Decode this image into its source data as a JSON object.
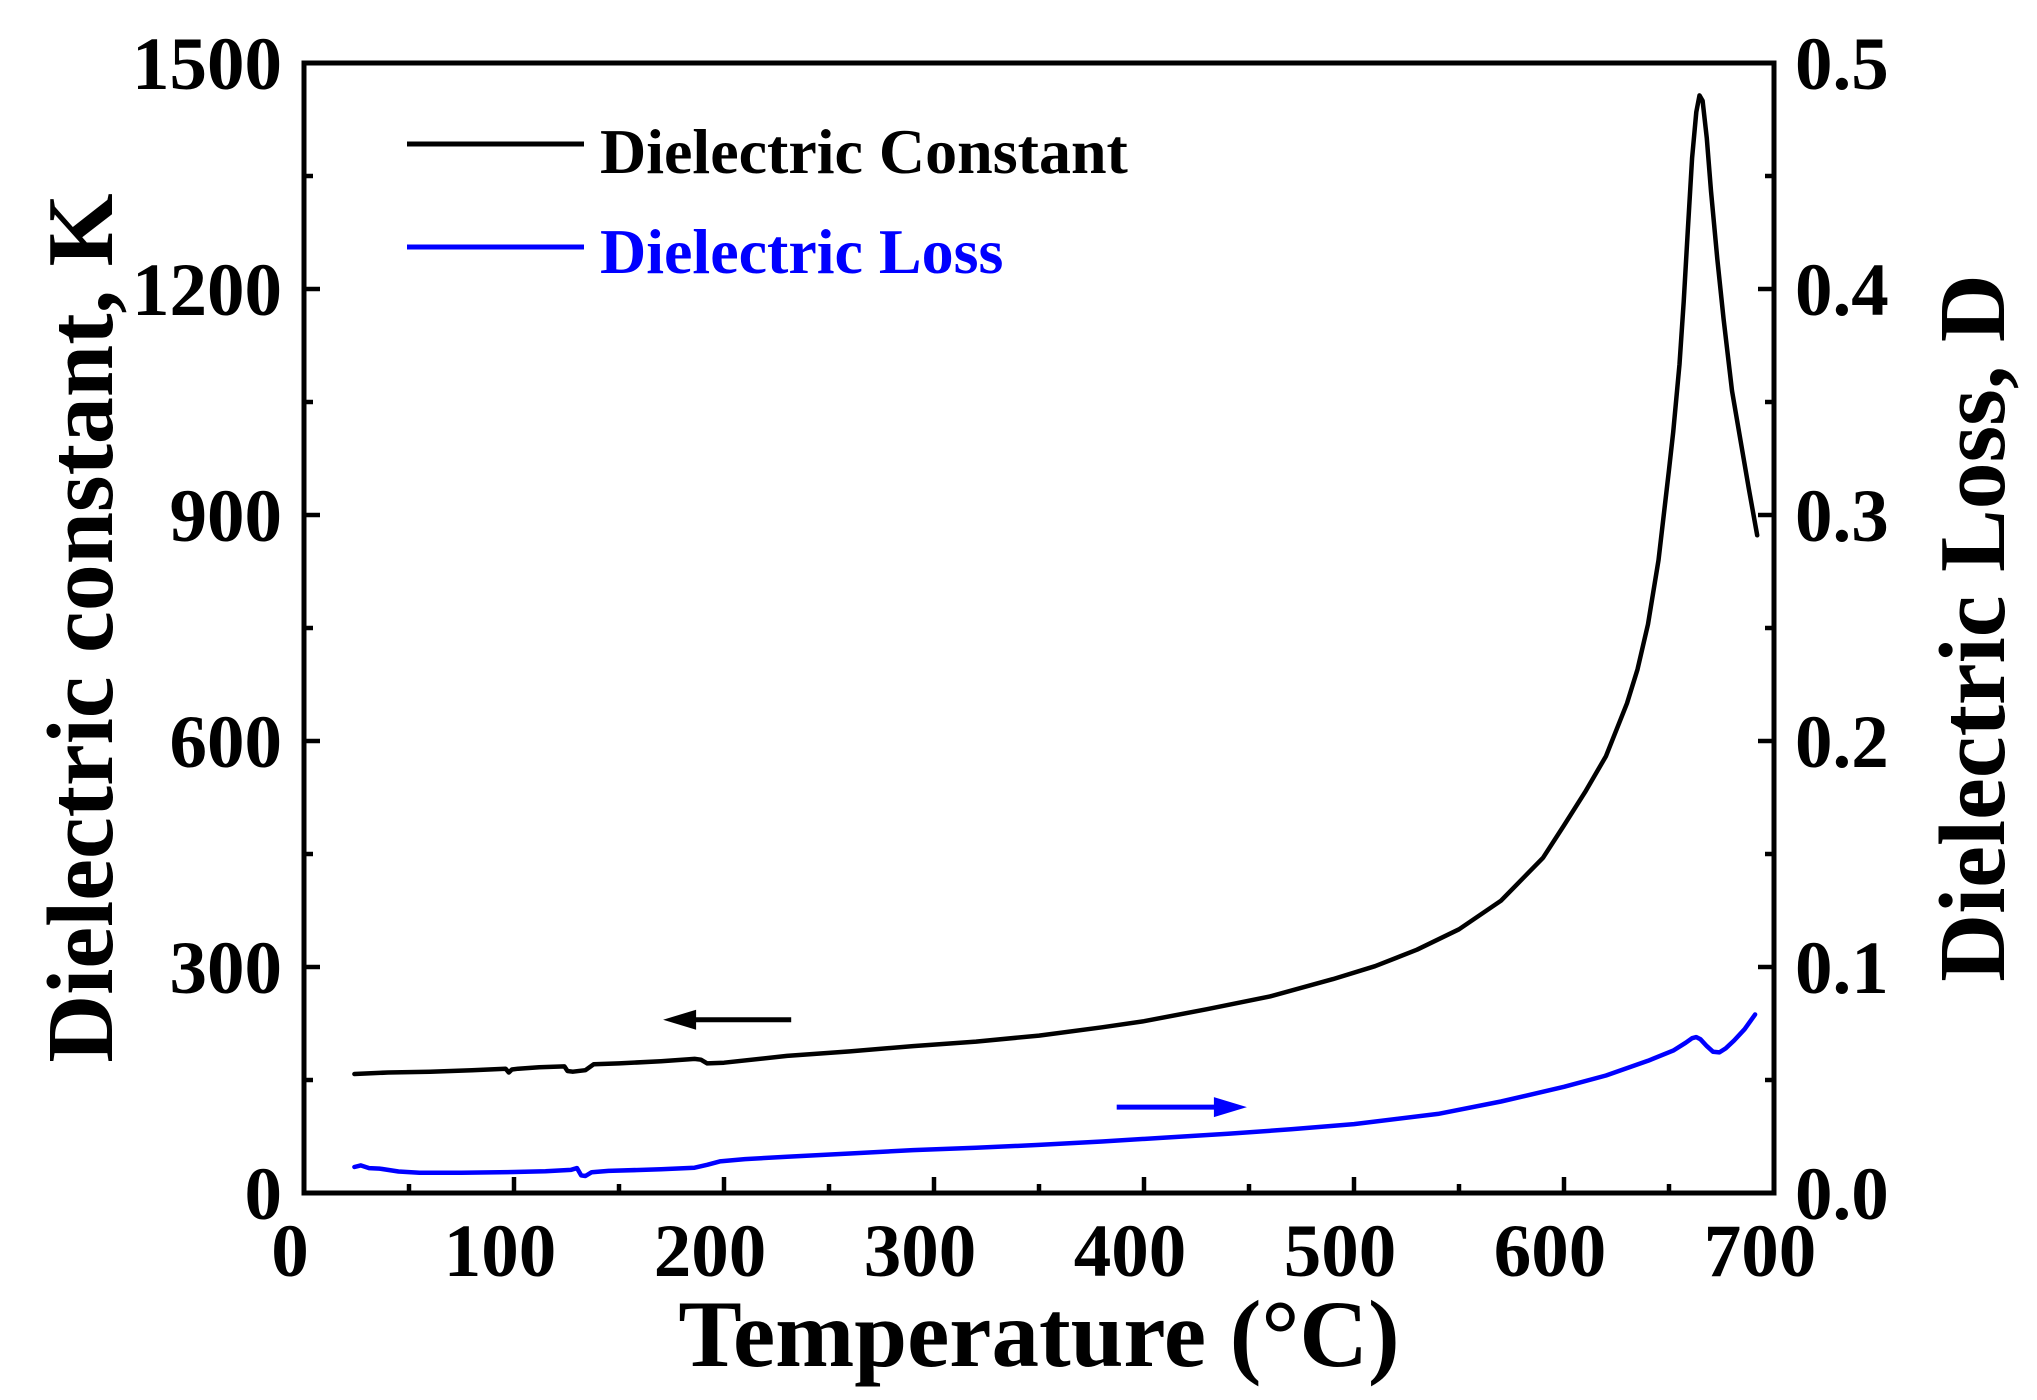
{
  "chart_data": {
    "type": "line",
    "xlabel": "Temperature (°C)",
    "ylabel": "Dielectric constant, K",
    "y2label": "Dielectric Loss, D",
    "xlim": [
      0,
      700
    ],
    "ylim": [
      0,
      1500
    ],
    "y2lim": [
      0,
      0.5
    ],
    "x_ticks": [
      0,
      100,
      200,
      300,
      400,
      500,
      600,
      700
    ],
    "x_tick_labels": [
      "0",
      "100",
      "200",
      "300",
      "400",
      "500",
      "600",
      "700"
    ],
    "y_ticks": [
      0,
      300,
      600,
      900,
      1200,
      1500
    ],
    "y_tick_labels": [
      "0",
      "300",
      "600",
      "900",
      "1200",
      "1500"
    ],
    "y2_ticks": [
      0,
      0.1,
      0.2,
      0.3,
      0.4,
      0.5
    ],
    "y2_tick_labels": [
      "0.0",
      "0.1",
      "0.2",
      "0.3",
      "0.4",
      "0.5"
    ],
    "grid": false,
    "legend_position": "top-left",
    "series": [
      {
        "name": "Dielectric Constant",
        "y_axis": "left",
        "color": "#000000",
        "x": [
          24,
          40,
          60,
          80,
          96,
          97.5,
          99,
          102,
          112,
          124,
          125.5,
          128,
          134,
          138,
          150,
          170,
          186,
          189,
          192,
          200,
          230,
          260,
          290,
          320,
          350,
          380,
          400,
          430,
          460,
          490,
          510,
          530,
          550,
          570,
          590,
          600,
          610,
          620,
          630,
          635,
          640,
          645,
          650,
          652,
          655,
          657,
          659,
          661,
          663,
          664.5,
          666,
          668,
          670,
          673,
          676,
          680,
          684,
          688,
          692
        ],
        "y": [
          158,
          160,
          161,
          163,
          165,
          160,
          164,
          165,
          167,
          168,
          162,
          161,
          163,
          171,
          172,
          175,
          178,
          177,
          172,
          173,
          182,
          188,
          195,
          201,
          209,
          220,
          228,
          244,
          261,
          284,
          301,
          323,
          350,
          388,
          445,
          488,
          532,
          580,
          650,
          695,
          755,
          840,
          960,
          1010,
          1100,
          1183,
          1280,
          1374,
          1435,
          1457,
          1450,
          1400,
          1330,
          1240,
          1160,
          1065,
          1000,
          935,
          873
        ],
        "indicator_arrow": {
          "from": [
            232,
            230
          ],
          "to": [
            171,
            230
          ]
        }
      },
      {
        "name": "Dielectric Loss",
        "y_axis": "right",
        "color": "#0000FF",
        "x": [
          24,
          27,
          31,
          36,
          45,
          55,
          75,
          100,
          115,
          127,
          130,
          132,
          134,
          137,
          145,
          170,
          186,
          192,
          198,
          210,
          230,
          260,
          290,
          320,
          350,
          380,
          410,
          440,
          470,
          500,
          540,
          570,
          600,
          620,
          640,
          652,
          658,
          661,
          663,
          665,
          668,
          671,
          674,
          677,
          681,
          686,
          691
        ],
        "y": [
          0.0115,
          0.0122,
          0.011,
          0.0108,
          0.0095,
          0.009,
          0.009,
          0.0093,
          0.0096,
          0.0102,
          0.011,
          0.0078,
          0.0075,
          0.0092,
          0.0098,
          0.0105,
          0.0112,
          0.0125,
          0.014,
          0.015,
          0.016,
          0.0175,
          0.019,
          0.02,
          0.0213,
          0.0228,
          0.0245,
          0.0262,
          0.0282,
          0.0305,
          0.035,
          0.0405,
          0.047,
          0.052,
          0.0585,
          0.063,
          0.0665,
          0.0685,
          0.069,
          0.068,
          0.065,
          0.0625,
          0.0622,
          0.064,
          0.0675,
          0.0725,
          0.079
        ],
        "indicator_arrow": {
          "from": [
            387,
            0.038
          ],
          "to": [
            449,
            0.038
          ]
        }
      }
    ]
  }
}
